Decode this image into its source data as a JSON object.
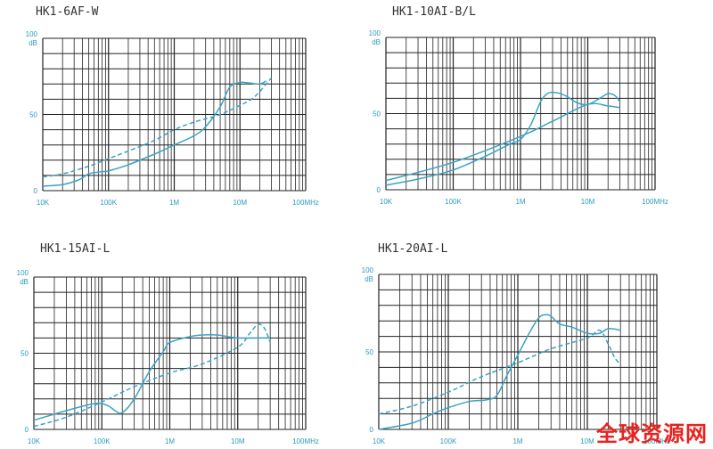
{
  "accent_color": "#3aa3c6",
  "grid_color": "#222222",
  "text_color": "#2a9bbf",
  "watermark": "全球资源网",
  "chart_data": [
    {
      "type": "line",
      "title": "HK1-6AF-W",
      "x_scale": "log",
      "xlim": [
        10000,
        100000000
      ],
      "ylim": [
        0,
        100
      ],
      "x_tick_labels": [
        "10K",
        "100K",
        "1M",
        "10M",
        "100MHz"
      ],
      "y_tick_labels": [
        "0",
        "50",
        "100"
      ],
      "y_unit": "dB",
      "series": [
        {
          "style": "solid",
          "x": [
            10000,
            20000,
            35000,
            50000,
            65000,
            80000,
            100000,
            200000,
            500000,
            1000000,
            2000000,
            3000000,
            5000000,
            7000000,
            10000000,
            12000000,
            15000000,
            20000000,
            25000000
          ],
          "y": [
            3,
            4,
            7,
            11,
            12,
            12.5,
            13,
            17,
            24,
            30,
            36,
            42,
            55,
            68,
            71,
            71,
            70.5,
            70,
            72
          ]
        },
        {
          "style": "dashed",
          "x": [
            10000,
            20000,
            50000,
            100000,
            200000,
            500000,
            1000000,
            2000000,
            5000000,
            10000000,
            15000000,
            20000000,
            25000000,
            30000000
          ],
          "y": [
            9,
            11,
            16,
            21,
            26,
            33,
            40,
            45,
            50,
            56,
            60,
            65,
            70,
            74
          ]
        }
      ]
    },
    {
      "type": "line",
      "title": "HK1-10AI-B/L",
      "x_scale": "log",
      "xlim": [
        10000,
        100000000
      ],
      "ylim": [
        0,
        100
      ],
      "x_tick_labels": [
        "10K",
        "100K",
        "1M",
        "10M",
        "100MHz"
      ],
      "y_tick_labels": [
        "0",
        "50",
        "100"
      ],
      "y_unit": "dB",
      "series": [
        {
          "style": "solid",
          "x": [
            10000,
            30000,
            100000,
            300000,
            700000,
            1000000,
            1400000,
            2000000,
            2500000,
            3000000,
            4000000,
            5000000,
            7000000,
            10000000,
            15000000,
            20000000,
            25000000,
            30000000
          ],
          "y": [
            3,
            7,
            13,
            22,
            30,
            33,
            42,
            58,
            63,
            64,
            63,
            61,
            57,
            56,
            60,
            63,
            62,
            58
          ]
        },
        {
          "style": "solid",
          "x": [
            10000,
            100000,
            1000000,
            3000000,
            10000000,
            20000000,
            30000000
          ],
          "y": [
            6,
            18,
            35,
            45,
            56,
            55,
            54
          ]
        }
      ]
    },
    {
      "type": "line",
      "title": "HK1-15AI-L",
      "x_scale": "log",
      "xlim": [
        10000,
        100000000
      ],
      "ylim": [
        0,
        100
      ],
      "x_tick_labels": [
        "10K",
        "100K",
        "1M",
        "10M",
        "100MHz"
      ],
      "y_tick_labels": [
        "0",
        "50",
        "100"
      ],
      "y_unit": "dB",
      "series": [
        {
          "style": "solid",
          "x": [
            10000,
            20000,
            50000,
            80000,
            100000,
            130000,
            160000,
            200000,
            300000,
            500000,
            800000,
            1000000,
            2000000,
            3000000,
            5000000,
            7000000,
            10000000,
            20000000,
            30000000
          ],
          "y": [
            6,
            10,
            15,
            17,
            17,
            15,
            12,
            11,
            20,
            38,
            51,
            57,
            61,
            62,
            62,
            61,
            60,
            60,
            60
          ]
        },
        {
          "style": "dashed",
          "x": [
            10000,
            30000,
            100000,
            300000,
            1000000,
            3000000,
            10000000,
            15000000,
            20000000,
            25000000,
            30000000
          ],
          "y": [
            2,
            8,
            18,
            28,
            37,
            43,
            54,
            63,
            69,
            66,
            57
          ]
        }
      ]
    },
    {
      "type": "line",
      "title": "HK1-20AI-L",
      "x_scale": "log",
      "xlim": [
        10000,
        100000000
      ],
      "ylim": [
        0,
        100
      ],
      "x_tick_labels": [
        "10K",
        "100K",
        "1M",
        "10M",
        "100MHz"
      ],
      "y_tick_labels": [
        "0",
        "50",
        "100"
      ],
      "y_unit": "dB",
      "series": [
        {
          "style": "solid",
          "x": [
            10000,
            30000,
            60000,
            100000,
            200000,
            350000,
            500000,
            700000,
            1000000,
            1500000,
            2000000,
            2500000,
            3000000,
            4000000,
            6000000,
            10000000,
            15000000,
            20000000,
            30000000
          ],
          "y": [
            0,
            4,
            10,
            14,
            18,
            19,
            22,
            35,
            48,
            63,
            72,
            74,
            73,
            68,
            66,
            62,
            62,
            65,
            64
          ]
        },
        {
          "style": "dashed",
          "x": [
            10000,
            30000,
            100000,
            300000,
            1000000,
            3000000,
            10000000,
            15000000,
            20000000,
            25000000,
            30000000
          ],
          "y": [
            10,
            15,
            24,
            34,
            43,
            52,
            59,
            64,
            55,
            46,
            42
          ]
        }
      ]
    }
  ]
}
